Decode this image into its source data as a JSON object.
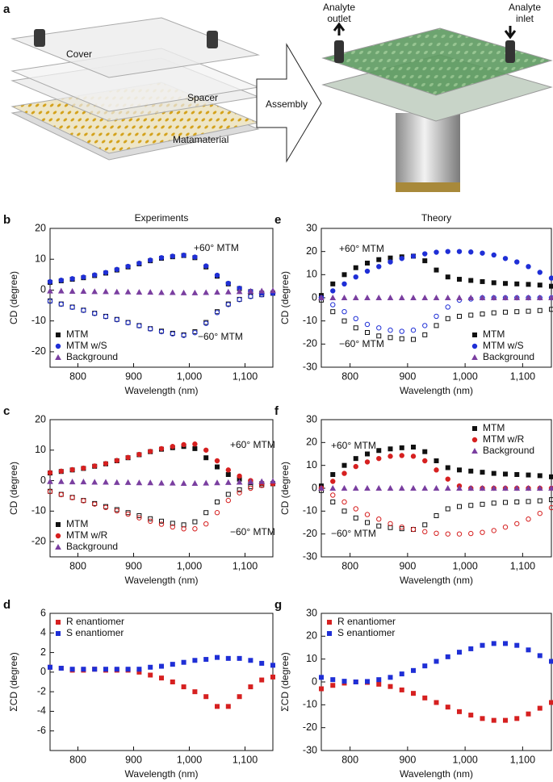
{
  "panel_a": {
    "label": "a",
    "cover": "Cover",
    "spacer": "Spacer",
    "metamaterial": "Matamaterial",
    "arrow": "Assembly",
    "outlet": [
      "Analyte",
      "outlet"
    ],
    "inlet": [
      "Analyte",
      "inlet"
    ]
  },
  "chart_data": [
    {
      "type": "scatter",
      "label": "b",
      "title": "Experiments",
      "x_label": "Wavelength (nm)",
      "y_label": "CD (degree)",
      "annotations": [
        "+60° MTM",
        "−60° MTM"
      ],
      "legend": "lower left",
      "xlim": [
        750,
        1150
      ],
      "xticks": [
        800,
        900,
        {
          "value": 1000,
          "label": "1,000"
        },
        {
          "value": 1100,
          "label": "1,100"
        }
      ],
      "ylim": [
        -25,
        20
      ],
      "yticks": [
        -20,
        -10,
        0,
        10,
        20
      ],
      "x": [
        750,
        770,
        790,
        810,
        830,
        850,
        870,
        890,
        910,
        930,
        950,
        970,
        990,
        1010,
        1030,
        1050,
        1070,
        1090,
        1110,
        1130,
        1150
      ],
      "series": [
        {
          "name": "MTM",
          "color": "#111111",
          "marker": "square",
          "values_plus": [
            2.5,
            3,
            3.5,
            4,
            4.7,
            5.5,
            6.5,
            7.5,
            8.5,
            9.5,
            10.3,
            10.8,
            11.2,
            10.5,
            7.5,
            4.5,
            2,
            0.5,
            -0.5,
            -1,
            -1
          ],
          "values_minus": [
            -3.5,
            -4.5,
            -5.5,
            -6.5,
            -7.5,
            -8.5,
            -9.5,
            -10.5,
            -11.5,
            -12.5,
            -13.3,
            -14,
            -14.5,
            -13.5,
            -10.5,
            -7,
            -4.5,
            -3,
            -2,
            -1.5,
            -1
          ]
        },
        {
          "name": "MTM w/S",
          "color": "#1f2fd6",
          "marker": "circle",
          "values_plus": [
            2.7,
            3.2,
            3.7,
            4.2,
            4.9,
            5.7,
            6.7,
            7.7,
            8.7,
            9.7,
            10.5,
            11,
            11.3,
            10.7,
            7.8,
            4.8,
            2.2,
            0.6,
            -0.4,
            -0.9,
            -1
          ],
          "values_minus": [
            -3.6,
            -4.6,
            -5.6,
            -6.6,
            -7.6,
            -8.6,
            -9.6,
            -10.6,
            -11.6,
            -12.6,
            -13.5,
            -14.2,
            -14.7,
            -13.8,
            -10.8,
            -7.3,
            -4.7,
            -3.1,
            -2.1,
            -1.5,
            -1
          ]
        },
        {
          "name": "Background",
          "color": "#7a3fa0",
          "marker": "triangle",
          "values": [
            -0.3,
            -0.3,
            -0.4,
            -0.4,
            -0.5,
            -0.5,
            -0.6,
            -0.6,
            -0.7,
            -0.7,
            -0.8,
            -0.8,
            -0.9,
            -0.9,
            -0.8,
            -0.7,
            -0.6,
            -0.5,
            -0.4,
            -0.3,
            -0.2
          ]
        }
      ]
    },
    {
      "type": "scatter",
      "label": "c",
      "x_label": "Wavelength (nm)",
      "y_label": "CD (degree)",
      "annotations": [
        "+60° MTM",
        "−60° MTM"
      ],
      "legend": "lower left",
      "xlim": [
        750,
        1150
      ],
      "xticks": [
        800,
        900,
        {
          "value": 1000,
          "label": "1,000"
        },
        {
          "value": 1100,
          "label": "1,100"
        }
      ],
      "ylim": [
        -25,
        20
      ],
      "yticks": [
        -20,
        -10,
        0,
        10,
        20
      ],
      "x": [
        750,
        770,
        790,
        810,
        830,
        850,
        870,
        890,
        910,
        930,
        950,
        970,
        990,
        1010,
        1030,
        1050,
        1070,
        1090,
        1110,
        1130,
        1150
      ],
      "series": [
        {
          "name": "MTM",
          "color": "#111111",
          "marker": "square",
          "values_plus": [
            2.5,
            3,
            3.5,
            4,
            4.7,
            5.5,
            6.5,
            7.5,
            8.5,
            9.5,
            10.3,
            10.8,
            11.2,
            10.5,
            7.5,
            4.5,
            2,
            0.5,
            -0.5,
            -1,
            -1
          ],
          "values_minus": [
            -3.5,
            -4.5,
            -5.5,
            -6.5,
            -7.5,
            -8.5,
            -9.5,
            -10.5,
            -11.5,
            -12.5,
            -13.3,
            -14,
            -14.5,
            -13.5,
            -10.5,
            -7,
            -4.5,
            -3,
            -2,
            -1.5,
            -1
          ]
        },
        {
          "name": "MTM w/R",
          "color": "#d62020",
          "marker": "circle",
          "values_plus": [
            2.6,
            3.1,
            3.6,
            4.1,
            4.8,
            5.6,
            6.6,
            7.6,
            8.6,
            9.6,
            10.5,
            11.2,
            11.8,
            12,
            10,
            6.5,
            3.5,
            1.5,
            0,
            -0.8,
            -1
          ],
          "values_minus": [
            -3.6,
            -4.6,
            -5.6,
            -6.6,
            -7.7,
            -8.8,
            -9.9,
            -11,
            -12.2,
            -13.3,
            -14.3,
            -15.2,
            -15.8,
            -15.8,
            -14.2,
            -10.5,
            -6.5,
            -4,
            -2.5,
            -1.6,
            -1
          ]
        },
        {
          "name": "Background",
          "color": "#7a3fa0",
          "marker": "triangle",
          "values": [
            -0.3,
            -0.3,
            -0.4,
            -0.4,
            -0.5,
            -0.5,
            -0.6,
            -0.6,
            -0.7,
            -0.7,
            -0.8,
            -0.8,
            -0.9,
            -0.9,
            -0.8,
            -0.7,
            -0.6,
            -0.5,
            -0.4,
            -0.3,
            -0.2
          ]
        }
      ]
    },
    {
      "type": "scatter",
      "label": "d",
      "x_label": "Wavelength (nm)",
      "y_label": "ΣCD (degree)",
      "legend": "upper left",
      "xlim": [
        750,
        1150
      ],
      "xticks": [
        800,
        900,
        {
          "value": 1000,
          "label": "1,000"
        },
        {
          "value": 1100,
          "label": "1,100"
        }
      ],
      "ylim": [
        -8,
        6
      ],
      "yticks": [
        -6,
        -4,
        -2,
        0,
        2,
        4,
        6
      ],
      "x": [
        750,
        770,
        790,
        810,
        830,
        850,
        870,
        890,
        910,
        930,
        950,
        970,
        990,
        1010,
        1030,
        1050,
        1070,
        1090,
        1110,
        1130,
        1150
      ],
      "series": [
        {
          "name": "R enantiomer",
          "color": "#d62020",
          "marker": "square",
          "values": [
            0.5,
            0.4,
            0.2,
            0.2,
            0.3,
            0.2,
            0.2,
            0.2,
            0,
            -0.3,
            -0.6,
            -1,
            -1.5,
            -2,
            -2.5,
            -3.5,
            -3.5,
            -2.5,
            -1.5,
            -0.8,
            -0.5
          ]
        },
        {
          "name": "S enantiomer",
          "color": "#1f2fd6",
          "marker": "square",
          "values": [
            0.5,
            0.4,
            0.3,
            0.3,
            0.3,
            0.3,
            0.3,
            0.3,
            0.3,
            0.5,
            0.6,
            0.8,
            1,
            1.2,
            1.3,
            1.5,
            1.4,
            1.4,
            1.2,
            0.9,
            0.7
          ]
        }
      ]
    },
    {
      "type": "scatter",
      "label": "e",
      "title": "Theory",
      "x_label": "Wavelength (nm)",
      "y_label": "CD (degree)",
      "annotations": [
        "+60° MTM",
        "−60° MTM"
      ],
      "legend": "lower right",
      "xlim": [
        750,
        1150
      ],
      "xticks": [
        800,
        900,
        {
          "value": 1000,
          "label": "1,000"
        },
        {
          "value": 1100,
          "label": "1,100"
        }
      ],
      "ylim": [
        -30,
        30
      ],
      "yticks": [
        -30,
        -20,
        -10,
        0,
        10,
        20,
        30
      ],
      "x": [
        750,
        770,
        790,
        810,
        830,
        850,
        870,
        890,
        910,
        930,
        950,
        970,
        990,
        1010,
        1030,
        1050,
        1070,
        1090,
        1110,
        1130,
        1150
      ],
      "series": [
        {
          "name": "MTM",
          "color": "#111111",
          "marker": "square",
          "values_plus": [
            1,
            6,
            10,
            13,
            15,
            16.5,
            17.2,
            17.7,
            18,
            16,
            12,
            9,
            8,
            7.5,
            7,
            6.5,
            6.2,
            6,
            5.8,
            5.5,
            5
          ],
          "values_minus": [
            -1,
            -6,
            -10,
            -13,
            -15,
            -16.5,
            -17.2,
            -17.7,
            -18,
            -16,
            -12,
            -9,
            -8,
            -7.5,
            -7,
            -6.5,
            -6.2,
            -6,
            -5.8,
            -5.5,
            -5
          ]
        },
        {
          "name": "MTM w/S",
          "color": "#1f2fd6",
          "marker": "circle",
          "values_plus": [
            0,
            3,
            6,
            9,
            11.5,
            13.5,
            15.5,
            17,
            18,
            19,
            19.7,
            20,
            20,
            19.8,
            19.3,
            18.5,
            17,
            15.5,
            13.5,
            11,
            8.5
          ],
          "values_minus": [
            0,
            -3,
            -6,
            -9,
            -11.5,
            -13,
            -14,
            -14.5,
            -14,
            -12,
            -8,
            -4,
            -1,
            -0.5,
            0,
            0,
            0,
            0,
            0,
            0,
            0
          ]
        },
        {
          "name": "Background",
          "color": "#7a3fa0",
          "marker": "triangle",
          "values": [
            0,
            0,
            0,
            0,
            0,
            0,
            0,
            0,
            0,
            0,
            0,
            0,
            0,
            0,
            0,
            0,
            0,
            0,
            0,
            0,
            0
          ]
        }
      ]
    },
    {
      "type": "scatter",
      "label": "f",
      "x_label": "Wavelength (nm)",
      "y_label": "CD (degree)",
      "annotations": [
        "+60° MTM",
        "−60° MTM"
      ],
      "legend": "upper right",
      "xlim": [
        750,
        1150
      ],
      "xticks": [
        800,
        900,
        {
          "value": 1000,
          "label": "1,000"
        },
        {
          "value": 1100,
          "label": "1,100"
        }
      ],
      "ylim": [
        -30,
        30
      ],
      "yticks": [
        -30,
        -20,
        -10,
        0,
        10,
        20,
        30
      ],
      "x": [
        750,
        770,
        790,
        810,
        830,
        850,
        870,
        890,
        910,
        930,
        950,
        970,
        990,
        1010,
        1030,
        1050,
        1070,
        1090,
        1110,
        1130,
        1150
      ],
      "series": [
        {
          "name": "MTM",
          "color": "#111111",
          "marker": "square",
          "values_plus": [
            1,
            6,
            10,
            13,
            15,
            16.5,
            17.2,
            17.7,
            18,
            16,
            12,
            9,
            8,
            7.5,
            7,
            6.5,
            6.2,
            6,
            5.8,
            5.5,
            5
          ],
          "values_minus": [
            -1,
            -6,
            -10,
            -13,
            -15,
            -16.5,
            -17.2,
            -17.7,
            -18,
            -16,
            -12,
            -9,
            -8,
            -7.5,
            -7,
            -6.5,
            -6.2,
            -6,
            -5.8,
            -5.5,
            -5
          ]
        },
        {
          "name": "MTM w/R",
          "color": "#d62020",
          "marker": "circle",
          "values_plus": [
            0,
            3,
            6.5,
            9.5,
            11.5,
            13,
            14,
            14.3,
            14,
            12,
            8,
            4,
            1,
            0,
            0,
            0,
            0,
            0,
            0,
            0,
            0
          ],
          "values_minus": [
            0,
            -3,
            -6,
            -9,
            -11.5,
            -13.5,
            -15.5,
            -17,
            -18,
            -19,
            -19.7,
            -20,
            -20,
            -19.8,
            -19.3,
            -18.5,
            -17,
            -15.5,
            -13.5,
            -11,
            -8.5
          ]
        },
        {
          "name": "Background",
          "color": "#7a3fa0",
          "marker": "triangle",
          "values": [
            0,
            0,
            0,
            0,
            0,
            0,
            0,
            0,
            0,
            0,
            0,
            0,
            0,
            0,
            0,
            0,
            0,
            0,
            0,
            0,
            0
          ]
        }
      ]
    },
    {
      "type": "scatter",
      "label": "g",
      "x_label": "Wavelength (nm)",
      "y_label": "ΣCD (degree)",
      "legend": "upper left",
      "xlim": [
        750,
        1150
      ],
      "xticks": [
        800,
        900,
        {
          "value": 1000,
          "label": "1,000"
        },
        {
          "value": 1100,
          "label": "1,100"
        }
      ],
      "ylim": [
        -30,
        30
      ],
      "yticks": [
        -30,
        -20,
        -10,
        0,
        10,
        20,
        30
      ],
      "x": [
        750,
        770,
        790,
        810,
        830,
        850,
        870,
        890,
        910,
        930,
        950,
        970,
        990,
        1010,
        1030,
        1050,
        1070,
        1090,
        1110,
        1130,
        1150
      ],
      "series": [
        {
          "name": "R enantiomer",
          "color": "#d62020",
          "marker": "square",
          "values": [
            -3,
            -1.5,
            -0.5,
            0,
            -0.2,
            -1,
            -2,
            -3.5,
            -5,
            -7,
            -9,
            -11,
            -13,
            -14.5,
            -16,
            -16.8,
            -16.8,
            -16,
            -14,
            -11.5,
            -9
          ]
        },
        {
          "name": "S enantiomer",
          "color": "#1f2fd6",
          "marker": "square",
          "values": [
            2,
            1,
            0.3,
            0,
            0.2,
            1,
            2,
            3.5,
            5,
            7,
            9,
            11,
            13,
            14.5,
            16,
            16.8,
            16.8,
            16,
            14,
            11.5,
            9
          ]
        }
      ]
    }
  ]
}
